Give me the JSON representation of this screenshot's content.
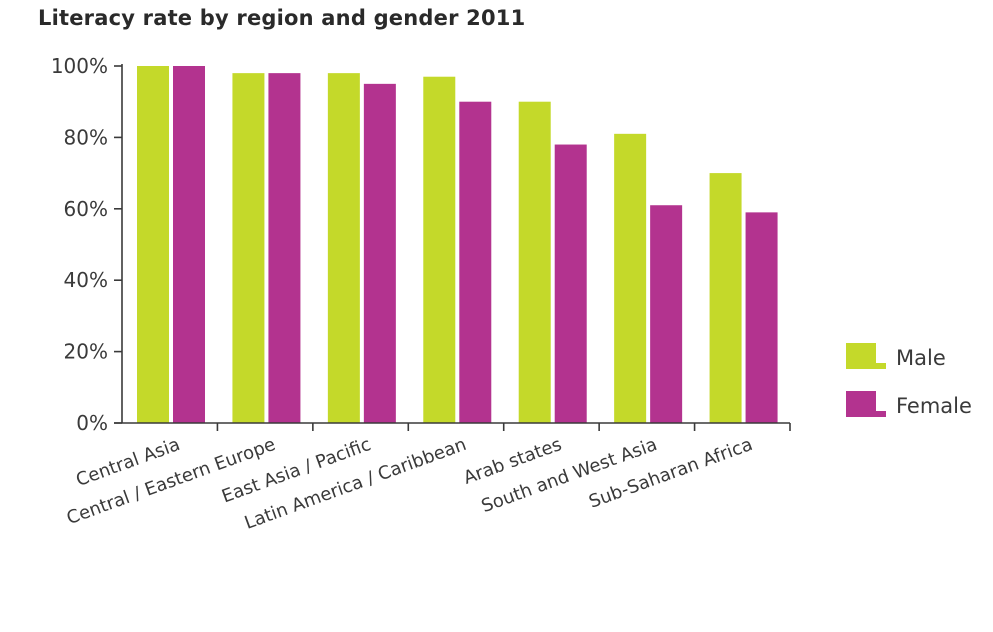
{
  "colors": {
    "male": "#c4d92a",
    "female": "#b3338f",
    "axis": "#3a3a3a"
  },
  "chart_data": {
    "type": "bar",
    "title": "Literacy rate by region and gender 2011",
    "xlabel": "",
    "ylabel": "",
    "ylim": [
      0,
      100
    ],
    "yticks": [
      "0%",
      "20%",
      "40%",
      "60%",
      "80%",
      "100%"
    ],
    "ytick_values": [
      0,
      20,
      40,
      60,
      80,
      100
    ],
    "grid": false,
    "legend_position": "right",
    "categories": [
      "Central Asia",
      "Central / Eastern Europe",
      "East Asia / Pacific",
      "Latin America / Caribbean",
      "Arab states",
      "South and West Asia",
      "Sub-Saharan Africa"
    ],
    "series": [
      {
        "name": "Male",
        "color": "#c4d92a",
        "values": [
          100,
          98,
          98,
          97,
          90,
          81,
          70
        ]
      },
      {
        "name": "Female",
        "color": "#b3338f",
        "values": [
          100,
          98,
          95,
          90,
          78,
          61,
          59
        ]
      }
    ]
  }
}
